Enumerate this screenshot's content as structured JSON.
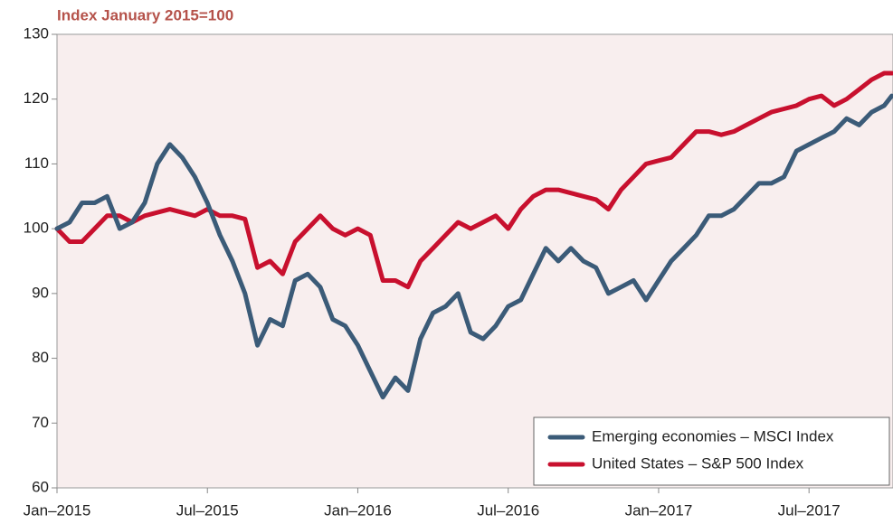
{
  "chart_data": {
    "type": "line",
    "title": "Index January 2015=100",
    "x": [
      0,
      0.5,
      1,
      1.5,
      2,
      2.5,
      3,
      3.5,
      4,
      4.5,
      5,
      5.5,
      6,
      6.5,
      7,
      7.5,
      8,
      8.5,
      9,
      9.5,
      10,
      10.5,
      11,
      11.5,
      12,
      12.5,
      13,
      13.5,
      14,
      14.5,
      15,
      15.5,
      16,
      16.5,
      17,
      17.5,
      18,
      18.5,
      19,
      19.5,
      20,
      20.5,
      21,
      21.5,
      22,
      22.5,
      23,
      23.5,
      24,
      24.5,
      25,
      25.5,
      26,
      26.5,
      27,
      27.5,
      28,
      28.5,
      29,
      29.5,
      30,
      30.5,
      31,
      31.5,
      32,
      32.5,
      33,
      33.3
    ],
    "series": [
      {
        "name": "Emerging economies – MSCI Index",
        "color": "#3b5b78",
        "values": [
          100,
          101,
          104,
          104,
          105,
          100,
          101,
          104,
          110,
          113,
          111,
          108,
          104,
          99,
          95,
          90,
          82,
          86,
          85,
          92,
          93,
          91,
          86,
          85,
          82,
          78,
          74,
          77,
          75,
          83,
          87,
          88,
          90,
          84,
          83,
          85,
          88,
          89,
          93,
          97,
          95,
          97,
          95,
          94,
          90,
          91,
          92,
          89,
          92,
          95,
          97,
          99,
          102,
          102,
          103,
          105,
          107,
          107,
          108,
          112,
          113,
          114,
          115,
          117,
          116,
          118,
          119,
          120.5
        ]
      },
      {
        "name": "United States – S&P 500 Index",
        "color": "#c8102e",
        "values": [
          100,
          98,
          98,
          100,
          102,
          102,
          101,
          102,
          102.5,
          103,
          102.5,
          102,
          103,
          102,
          102,
          101.5,
          94,
          95,
          93,
          98,
          100,
          102,
          100,
          99,
          100,
          99,
          92,
          92,
          91,
          95,
          97,
          99,
          101,
          100,
          101,
          102,
          100,
          103,
          105,
          106,
          106,
          105.5,
          105,
          104.5,
          103,
          106,
          108,
          110,
          110.5,
          111,
          113,
          115,
          115,
          114.5,
          115,
          116,
          117,
          118,
          118.5,
          119,
          120,
          120.5,
          119,
          120,
          121.5,
          123,
          124,
          124
        ]
      }
    ],
    "xlim": [
      0,
      33.35
    ],
    "xticks": [
      {
        "value": 0,
        "label": "Jan–2015"
      },
      {
        "value": 6,
        "label": "Jul–2015"
      },
      {
        "value": 12,
        "label": "Jan–2016"
      },
      {
        "value": 18,
        "label": "Jul–2016"
      },
      {
        "value": 24,
        "label": "Jan–2017"
      },
      {
        "value": 30,
        "label": "Jul–2017"
      }
    ],
    "ylim": [
      60,
      130
    ],
    "yticks": [
      60,
      70,
      80,
      90,
      100,
      110,
      120,
      130
    ],
    "legend": "lower right"
  }
}
